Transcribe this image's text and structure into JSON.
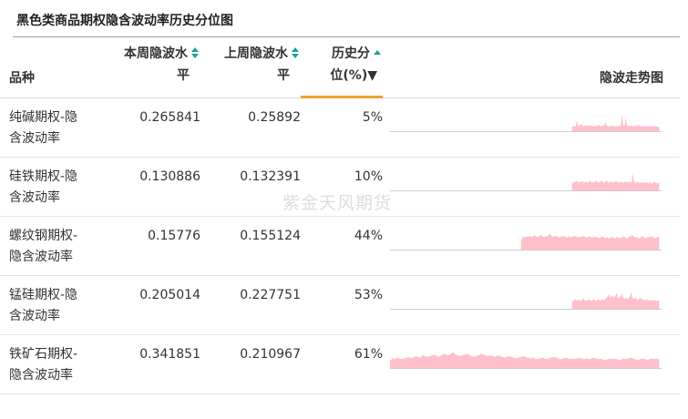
{
  "title": "黑色类商品期权隐含波动率历史分位图",
  "watermark": "紫金天风期货",
  "columns": {
    "name": "品种",
    "this_week_line1": "本周隐波水",
    "this_week_line2": "平",
    "last_week_line1": "上周隐波水",
    "last_week_line2": "平",
    "percentile_line1": "历史分",
    "percentile_line2": "位(%)▼",
    "trend": "隐波走势图"
  },
  "colors": {
    "sparkline": "#ffc0cb",
    "sort_arrow": "#1aa394",
    "active_sort": "#f0a030"
  },
  "rows": [
    {
      "name_line1": "纯碱期权-隐",
      "name_line2": "含波动率",
      "this_week": "0.265841",
      "last_week": "0.25892",
      "percentile": "5%",
      "spark": [
        0.4,
        0.45,
        0.5,
        0.42,
        0.48,
        1.0,
        0.6,
        0.55,
        0.5,
        0.62,
        0.7,
        0.5,
        0.45,
        0.55,
        0.5,
        0.6,
        0.48,
        0.52,
        0.58,
        0.5,
        0.55,
        0.6,
        0.5,
        0.45,
        0.52,
        0.48,
        0.5,
        0.55,
        0.5,
        0.62,
        0.55,
        0.5,
        0.48,
        0.5,
        0.55,
        0.6,
        0.9,
        0.55,
        0.5,
        0.52,
        0.48,
        0.45,
        0.5,
        0.52,
        0.55,
        0.5,
        0.48,
        0.45,
        0.5,
        0.52,
        0.48,
        0.5,
        0.55,
        0.5,
        1.6,
        0.6,
        0.55,
        0.5,
        1.3,
        0.6,
        0.55,
        0.5,
        0.45,
        0.5,
        0.55,
        0.5,
        0.48,
        0.5,
        0.52,
        0.55,
        0.5,
        0.48,
        0.62,
        0.5,
        0.52,
        0.48,
        0.45,
        0.5,
        0.48,
        0.5,
        0.52,
        0.48,
        0.45,
        0.5,
        0.48,
        0.46,
        0.5,
        0.48,
        0.45,
        0.5,
        0.52,
        0.48,
        0.45,
        0.42,
        0.48
      ]
    },
    {
      "name_line1": "硅铁期权-隐",
      "name_line2": "含波动率",
      "this_week": "0.130886",
      "last_week": "0.132391",
      "percentile": "10%",
      "spark": [
        0.4,
        0.5,
        0.45,
        0.55,
        0.5,
        0.6,
        0.5,
        0.55,
        0.48,
        0.52,
        0.5,
        0.55,
        0.6,
        0.5,
        0.45,
        0.52,
        0.55,
        0.5,
        0.48,
        0.5,
        0.55,
        0.6,
        0.55,
        0.5,
        0.52,
        0.48,
        0.5,
        0.55,
        0.6,
        0.55,
        0.5,
        0.48,
        0.5,
        0.52,
        0.55,
        0.6,
        0.55,
        0.5,
        0.48,
        0.5,
        0.55,
        0.62,
        0.55,
        0.5,
        0.48,
        0.5,
        0.52,
        0.55,
        0.5,
        0.48,
        0.5,
        0.55,
        0.6,
        0.55,
        0.5,
        0.48,
        0.5,
        0.52,
        0.55,
        0.5,
        0.48,
        0.5,
        0.52,
        0.55,
        0.58,
        0.5,
        0.48,
        0.5,
        0.55,
        0.52,
        0.5,
        0.48,
        1.0,
        0.6,
        0.55,
        0.5,
        0.48,
        0.5,
        0.55,
        0.5,
        0.48,
        0.45,
        0.5,
        0.48,
        0.45,
        0.5,
        0.48,
        0.46,
        0.5,
        0.48,
        0.45,
        0.42,
        0.5,
        0.48,
        0.45,
        0.42,
        0.48,
        0.45,
        0.55,
        0.5,
        0.45,
        0.4,
        0.48,
        0.45
      ]
    },
    {
      "name_line1": "螺纹钢期权-",
      "name_line2": "隐含波动率",
      "this_week": "0.15776",
      "last_week": "0.155124",
      "percentile": "44%",
      "spark": [
        0.3,
        0.45,
        0.5,
        0.45,
        0.5,
        0.48,
        0.5,
        0.52,
        0.48,
        0.5,
        0.55,
        0.5,
        0.48,
        0.5,
        0.52,
        0.55,
        0.5,
        0.48,
        0.5,
        0.52,
        0.5,
        0.6,
        0.55,
        0.5,
        0.48,
        0.5,
        0.52,
        0.5,
        0.48,
        0.45,
        0.5,
        0.52,
        0.48,
        0.5,
        0.45,
        0.48,
        0.5,
        0.45,
        0.48,
        0.5,
        0.52,
        0.5,
        0.48,
        0.45,
        0.5,
        0.48,
        0.5,
        0.52,
        0.48,
        0.45,
        0.5,
        0.48,
        0.5,
        0.45,
        0.48,
        0.5,
        0.45,
        0.48,
        0.42,
        0.45,
        0.48,
        0.5,
        0.45,
        0.42,
        0.48,
        0.45,
        0.42,
        0.45,
        0.48,
        0.45,
        0.42,
        0.45,
        0.48,
        0.45,
        0.42,
        0.45,
        0.48,
        0.5,
        0.45,
        0.42,
        0.45,
        0.48,
        0.5,
        0.55,
        0.5,
        0.45,
        0.48,
        0.45,
        0.42,
        0.45,
        0.48,
        0.5,
        0.45,
        0.42,
        0.45,
        0.48,
        0.45,
        0.5,
        0.48,
        0.45,
        0.42,
        0.45,
        0.48,
        0.45
      ]
    },
    {
      "name_line1": "锰硅期权-隐",
      "name_line2": "含波动率",
      "this_week": "0.205014",
      "last_week": "0.227751",
      "percentile": "53%",
      "spark": [
        0.4,
        0.5,
        0.55,
        0.6,
        0.55,
        0.5,
        0.6,
        0.55,
        0.5,
        0.52,
        0.55,
        0.6,
        0.65,
        0.55,
        0.5,
        0.52,
        0.55,
        0.5,
        0.6,
        0.55,
        0.5,
        0.52,
        0.55,
        0.6,
        0.55,
        0.5,
        0.52,
        0.55,
        0.6,
        0.55,
        0.5,
        0.52,
        0.55,
        0.6,
        0.55,
        0.5,
        0.62,
        0.7,
        0.75,
        0.8,
        0.9,
        0.75,
        0.7,
        0.8,
        0.85,
        0.7,
        0.75,
        0.8,
        1.0,
        0.7,
        0.65,
        0.7,
        0.8,
        0.75,
        0.9,
        0.7,
        0.65,
        0.6,
        0.7,
        0.65,
        0.6,
        0.65,
        0.7,
        0.8,
        1.0,
        0.7,
        0.65,
        0.6,
        0.65,
        0.7,
        0.6,
        0.55,
        0.6,
        0.65,
        0.7,
        0.6,
        0.55,
        0.6,
        0.55,
        0.5,
        0.55,
        0.6,
        0.55,
        0.5,
        0.55,
        0.5,
        0.52,
        0.55,
        0.5,
        0.52,
        0.55,
        0.5,
        0.48,
        0.5,
        0.52
      ]
    },
    {
      "name_line1": "铁矿石期权-",
      "name_line2": "隐含波动率",
      "this_week": "0.341851",
      "last_week": "0.210967",
      "percentile": "61%",
      "spark": [
        0.45,
        0.6,
        0.55,
        0.65,
        0.6,
        0.55,
        0.6,
        0.65,
        0.7,
        0.6,
        0.65,
        0.75,
        0.7,
        0.65,
        0.8,
        0.75,
        0.7,
        0.75,
        0.8,
        0.85,
        0.75,
        0.7,
        0.8,
        0.9,
        0.85,
        0.8,
        0.9,
        1.0,
        0.85,
        0.8,
        0.75,
        0.8,
        0.85,
        0.9,
        0.8,
        0.75,
        0.7,
        0.75,
        0.8,
        0.9,
        0.85,
        0.8,
        0.75,
        0.8,
        0.75,
        0.7,
        0.8,
        0.75,
        0.7,
        0.65,
        0.7,
        0.75,
        0.7,
        0.65,
        0.6,
        0.65,
        0.7,
        0.75,
        0.7,
        0.65,
        0.6,
        0.65,
        0.6,
        0.55,
        0.6,
        0.65,
        0.6,
        0.55,
        0.6,
        0.65,
        0.7,
        0.65,
        0.6,
        0.55,
        0.6,
        0.65,
        0.6,
        0.55,
        0.6,
        0.55,
        0.6,
        0.65,
        0.6,
        0.55,
        0.6,
        0.55,
        0.6,
        0.65,
        0.6,
        0.55,
        0.6,
        0.55,
        0.5,
        0.55,
        0.6,
        0.55,
        0.6,
        0.55,
        0.5,
        0.55,
        0.6,
        0.55,
        0.6,
        0.65,
        0.6,
        0.55,
        0.5,
        0.55,
        0.6,
        0.55,
        0.5,
        0.55,
        0.6,
        0.55,
        0.6,
        0.55
      ]
    }
  ]
}
